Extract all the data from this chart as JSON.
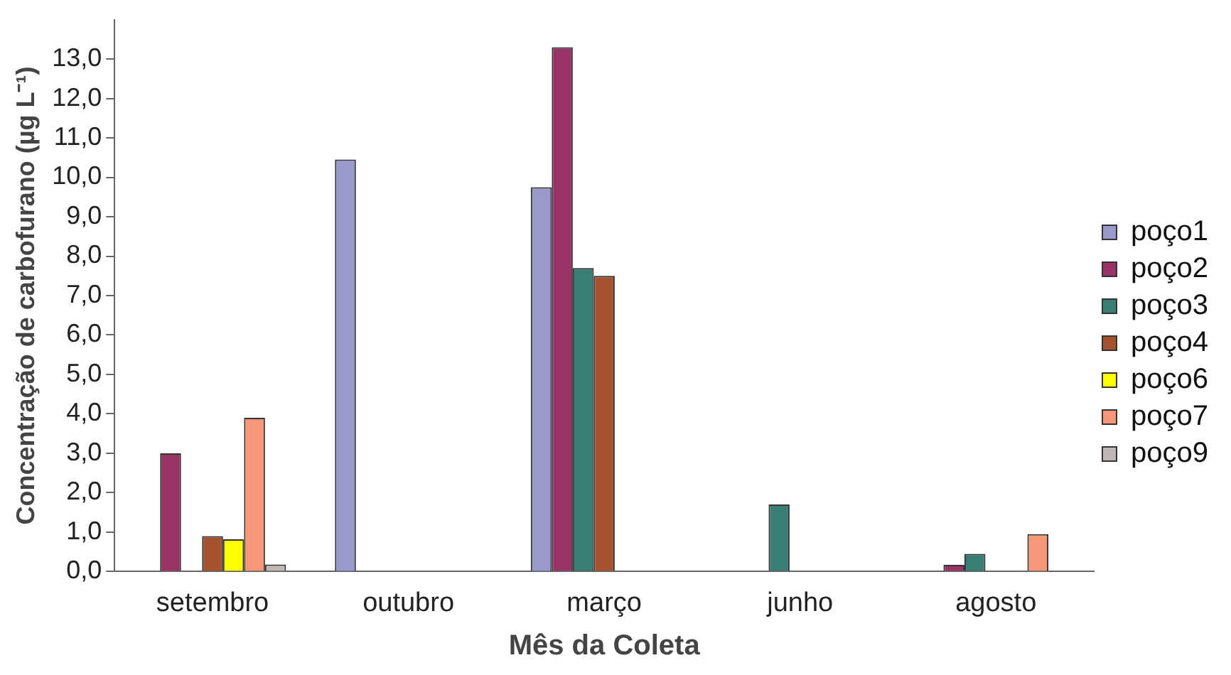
{
  "chart_data": {
    "type": "bar",
    "xlabel": "Mês da Coleta",
    "ylabel": "Concentração de carbofurano (µg L⁻¹)",
    "categories": [
      "setembro",
      "outubro",
      "março",
      "junho",
      "agosto"
    ],
    "series": [
      {
        "name": "poço1",
        "color": "#9999cc",
        "values": [
          null,
          10.45,
          9.75,
          null,
          null
        ]
      },
      {
        "name": "poço2",
        "color": "#993366",
        "values": [
          3.0,
          null,
          13.3,
          null,
          0.17
        ]
      },
      {
        "name": "poço3",
        "color": "#3a7d73",
        "values": [
          null,
          null,
          7.7,
          1.7,
          0.45
        ]
      },
      {
        "name": "poço4",
        "color": "#a5522f",
        "values": [
          0.9,
          null,
          7.5,
          null,
          null
        ]
      },
      {
        "name": "poço6",
        "color": "#ffff00",
        "values": [
          0.82,
          null,
          null,
          null,
          null
        ]
      },
      {
        "name": "poço7",
        "color": "#f7977a",
        "values": [
          3.9,
          null,
          null,
          null,
          0.95
        ]
      },
      {
        "name": "poço9",
        "color": "#c0b8b4",
        "values": [
          0.18,
          null,
          null,
          null,
          null
        ]
      }
    ],
    "ylim": [
      0,
      14
    ],
    "yticks": [
      {
        "value": 0,
        "label": "0,0"
      },
      {
        "value": 1,
        "label": "1,0"
      },
      {
        "value": 2,
        "label": "2,0"
      },
      {
        "value": 3,
        "label": "3,0"
      },
      {
        "value": 4,
        "label": "4,0"
      },
      {
        "value": 5,
        "label": "5,0"
      },
      {
        "value": 6,
        "label": "6,0"
      },
      {
        "value": 7,
        "label": "7,0"
      },
      {
        "value": 8,
        "label": "8,0"
      },
      {
        "value": 9,
        "label": "9,0"
      },
      {
        "value": 10,
        "label": "10,0"
      },
      {
        "value": 11,
        "label": "11,0"
      },
      {
        "value": 12,
        "label": "12,0"
      },
      {
        "value": 13,
        "label": "13,0"
      }
    ],
    "grid": false,
    "legend": "right"
  }
}
